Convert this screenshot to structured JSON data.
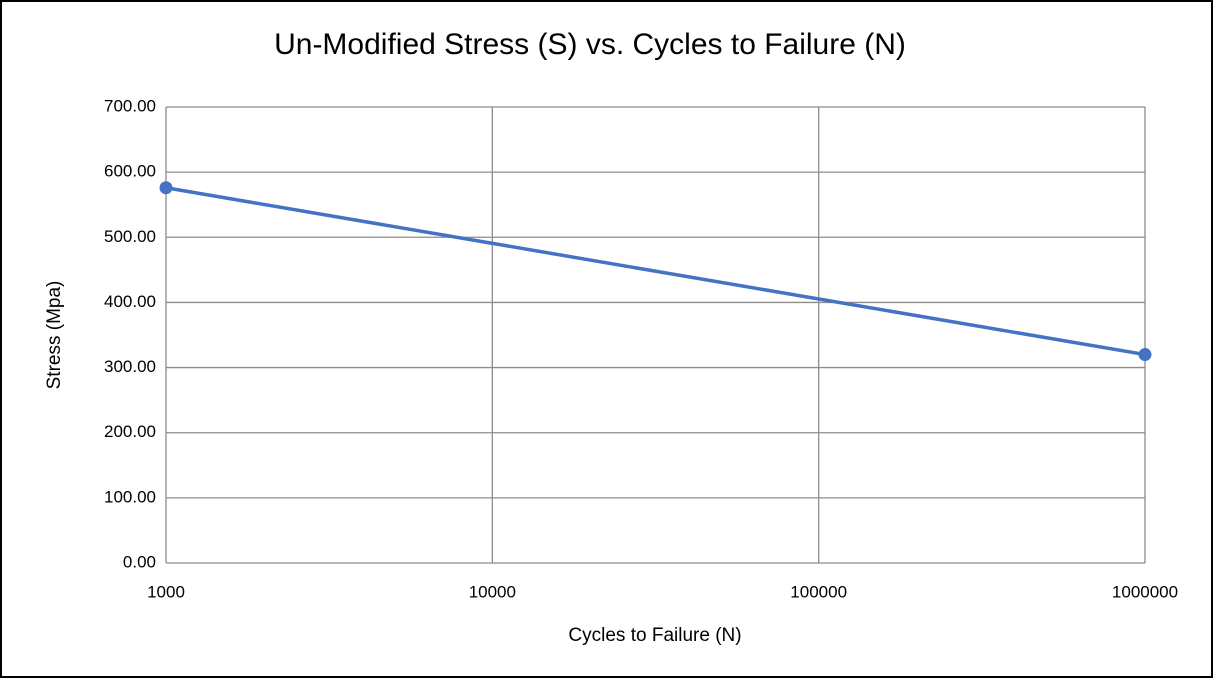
{
  "chart_data": {
    "type": "line",
    "title": "Un-Modified Stress (S) vs. Cycles to Failure (N)",
    "x_label": "Cycles to Failure (N)",
    "y_label": "Stress (Mpa)",
    "x": [
      1000,
      1000000
    ],
    "series": [
      {
        "color": "#4472c4",
        "values": [
          576,
          320
        ]
      }
    ],
    "xscale": "log",
    "xlim": [
      1000,
      1000000
    ],
    "xticks": [
      1000,
      10000,
      100000,
      1000000
    ],
    "ylim": [
      0,
      700
    ],
    "yticks": [
      {
        "value": 0,
        "label": "0.00"
      },
      {
        "value": 100,
        "label": "100.00"
      },
      {
        "value": 200,
        "label": "200.00"
      },
      {
        "value": 300,
        "label": "300.00"
      },
      {
        "value": 400,
        "label": "400.00"
      },
      {
        "value": 500,
        "label": "500.00"
      },
      {
        "value": 600,
        "label": "600.00"
      },
      {
        "value": 700,
        "label": "700.00"
      }
    ],
    "grid": true,
    "markers": true
  }
}
